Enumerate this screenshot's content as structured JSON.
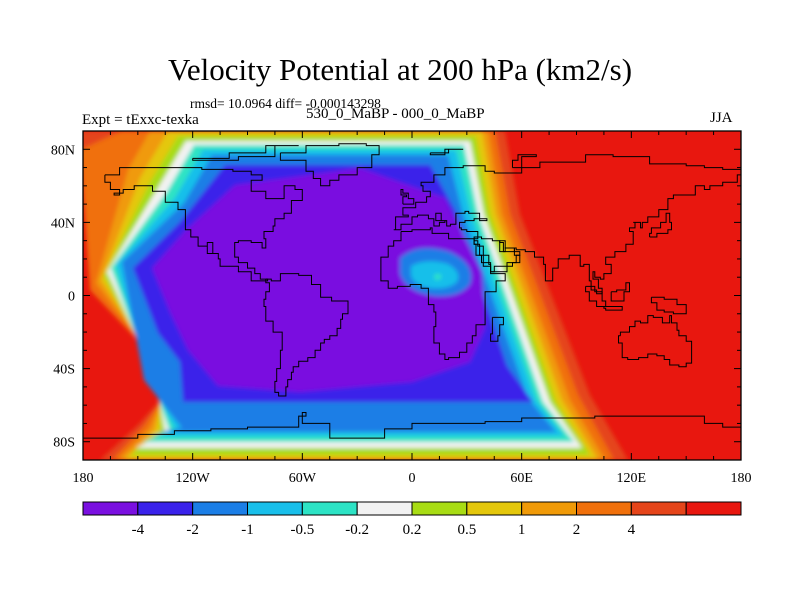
{
  "title": "Velocity Potential at 200 hPa (km2/s)",
  "stats_text": "rmsd= 10.0964 diff= -0.000143298",
  "left_label": "Expt = tExxc-texka",
  "center_label": "530_0_MaBP - 000_0_MaBP",
  "right_label": "JJA",
  "chart_data": {
    "type": "contour-map",
    "title": "Velocity Potential at 200 hPa (km2/s)",
    "units": "km2/s",
    "season": "JJA",
    "rmsd": 10.0964,
    "diff": -0.000143298,
    "xlim": [
      -180,
      180
    ],
    "ylim": [
      -90,
      90
    ],
    "x_ticks": [
      {
        "value": -180,
        "label": "180"
      },
      {
        "value": -120,
        "label": "120W"
      },
      {
        "value": -60,
        "label": "60W"
      },
      {
        "value": 0,
        "label": "0"
      },
      {
        "value": 60,
        "label": "60E"
      },
      {
        "value": 120,
        "label": "120E"
      },
      {
        "value": 180,
        "label": "180"
      }
    ],
    "y_ticks": [
      {
        "value": 80,
        "label": "80N"
      },
      {
        "value": 40,
        "label": "40N"
      },
      {
        "value": 0,
        "label": "0"
      },
      {
        "value": -40,
        "label": "40S"
      },
      {
        "value": -80,
        "label": "80S"
      }
    ],
    "contour_levels": [
      -4,
      -2,
      -1,
      -0.5,
      -0.2,
      0.2,
      0.5,
      1,
      2,
      4
    ],
    "colorbar_labels": [
      "-4",
      "-2",
      "-1",
      "-0.5",
      "-0.2",
      "0.2",
      "0.5",
      "1",
      "2",
      "4"
    ],
    "colorbar_colors": [
      "#7a10e0",
      "#3a22ea",
      "#1b7ee6",
      "#19bfea",
      "#2de3c5",
      "#f2f2f2",
      "#a8dc14",
      "#e4c70c",
      "#f09a08",
      "#f0700b",
      "#e5451a",
      "#e8170f"
    ],
    "pattern": {
      "negative_center": {
        "lon": -50,
        "lat": 10,
        "value": -4
      },
      "positive_center": {
        "lon": 120,
        "lat": 10,
        "value": 4
      },
      "local_maximum": {
        "lon": 15,
        "lat": 10,
        "value": -0.5
      }
    }
  }
}
